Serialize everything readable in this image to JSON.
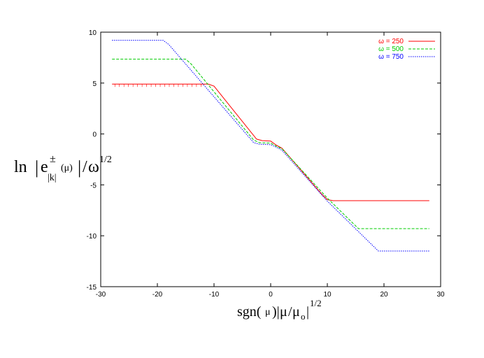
{
  "chart_data": {
    "type": "line",
    "title": "",
    "xlabel": {
      "parts": [
        "sgn(",
        "μ",
        ")|",
        "μ",
        "/",
        "μ",
        "o",
        "|",
        "1/2"
      ]
    },
    "ylabel": {
      "parts": [
        "ln",
        "|",
        "e",
        "±",
        "|k|",
        "(μ)",
        "|",
        "/",
        "ω",
        "1/2"
      ]
    },
    "xlim": [
      -30,
      30
    ],
    "ylim": [
      -15,
      10
    ],
    "xticks": [
      -30,
      -20,
      -10,
      0,
      10,
      20,
      30
    ],
    "yticks": [
      -15,
      -10,
      -5,
      0,
      5,
      10
    ],
    "xtick_labels": [
      "-30",
      "-20",
      "-10",
      "0",
      "10",
      "20",
      "30"
    ],
    "ytick_labels": [
      "-15",
      "-10",
      "-5",
      "0",
      "5",
      "10"
    ],
    "grid": false,
    "legend_position": "top-right",
    "series": [
      {
        "name": "ω = 250",
        "color": "#ff0000",
        "dash": "solid",
        "points": [
          [
            -28,
            4.9
          ],
          [
            -11,
            4.9
          ],
          [
            -10,
            4.7
          ],
          [
            -2.5,
            -0.5
          ],
          [
            -1.5,
            -0.65
          ],
          [
            0,
            -0.7
          ],
          [
            1,
            -1.1
          ],
          [
            2,
            -1.4
          ],
          [
            9,
            -5.9
          ],
          [
            10,
            -6.45
          ],
          [
            11,
            -6.55
          ],
          [
            28,
            -6.55
          ]
        ]
      },
      {
        "name": "ω = 500",
        "color": "#00cc00",
        "dash": "dashed",
        "points": [
          [
            -28,
            7.35
          ],
          [
            -15,
            7.35
          ],
          [
            -14,
            6.85
          ],
          [
            -3,
            -0.6
          ],
          [
            -2,
            -0.85
          ],
          [
            0,
            -0.9
          ],
          [
            1,
            -1.2
          ],
          [
            2,
            -1.45
          ],
          [
            10,
            -6.3
          ],
          [
            15.5,
            -9.3
          ],
          [
            28,
            -9.3
          ]
        ]
      },
      {
        "name": "ω = 750",
        "color": "#0000ff",
        "dash": "dotted",
        "points": [
          [
            -28,
            9.2
          ],
          [
            -19,
            9.2
          ],
          [
            -18,
            8.8
          ],
          [
            -3,
            -0.85
          ],
          [
            -2,
            -1.0
          ],
          [
            0,
            -1.05
          ],
          [
            1,
            -1.3
          ],
          [
            2,
            -1.6
          ],
          [
            10,
            -6.6
          ],
          [
            19,
            -11.5
          ],
          [
            28,
            -11.5
          ]
        ]
      }
    ]
  }
}
